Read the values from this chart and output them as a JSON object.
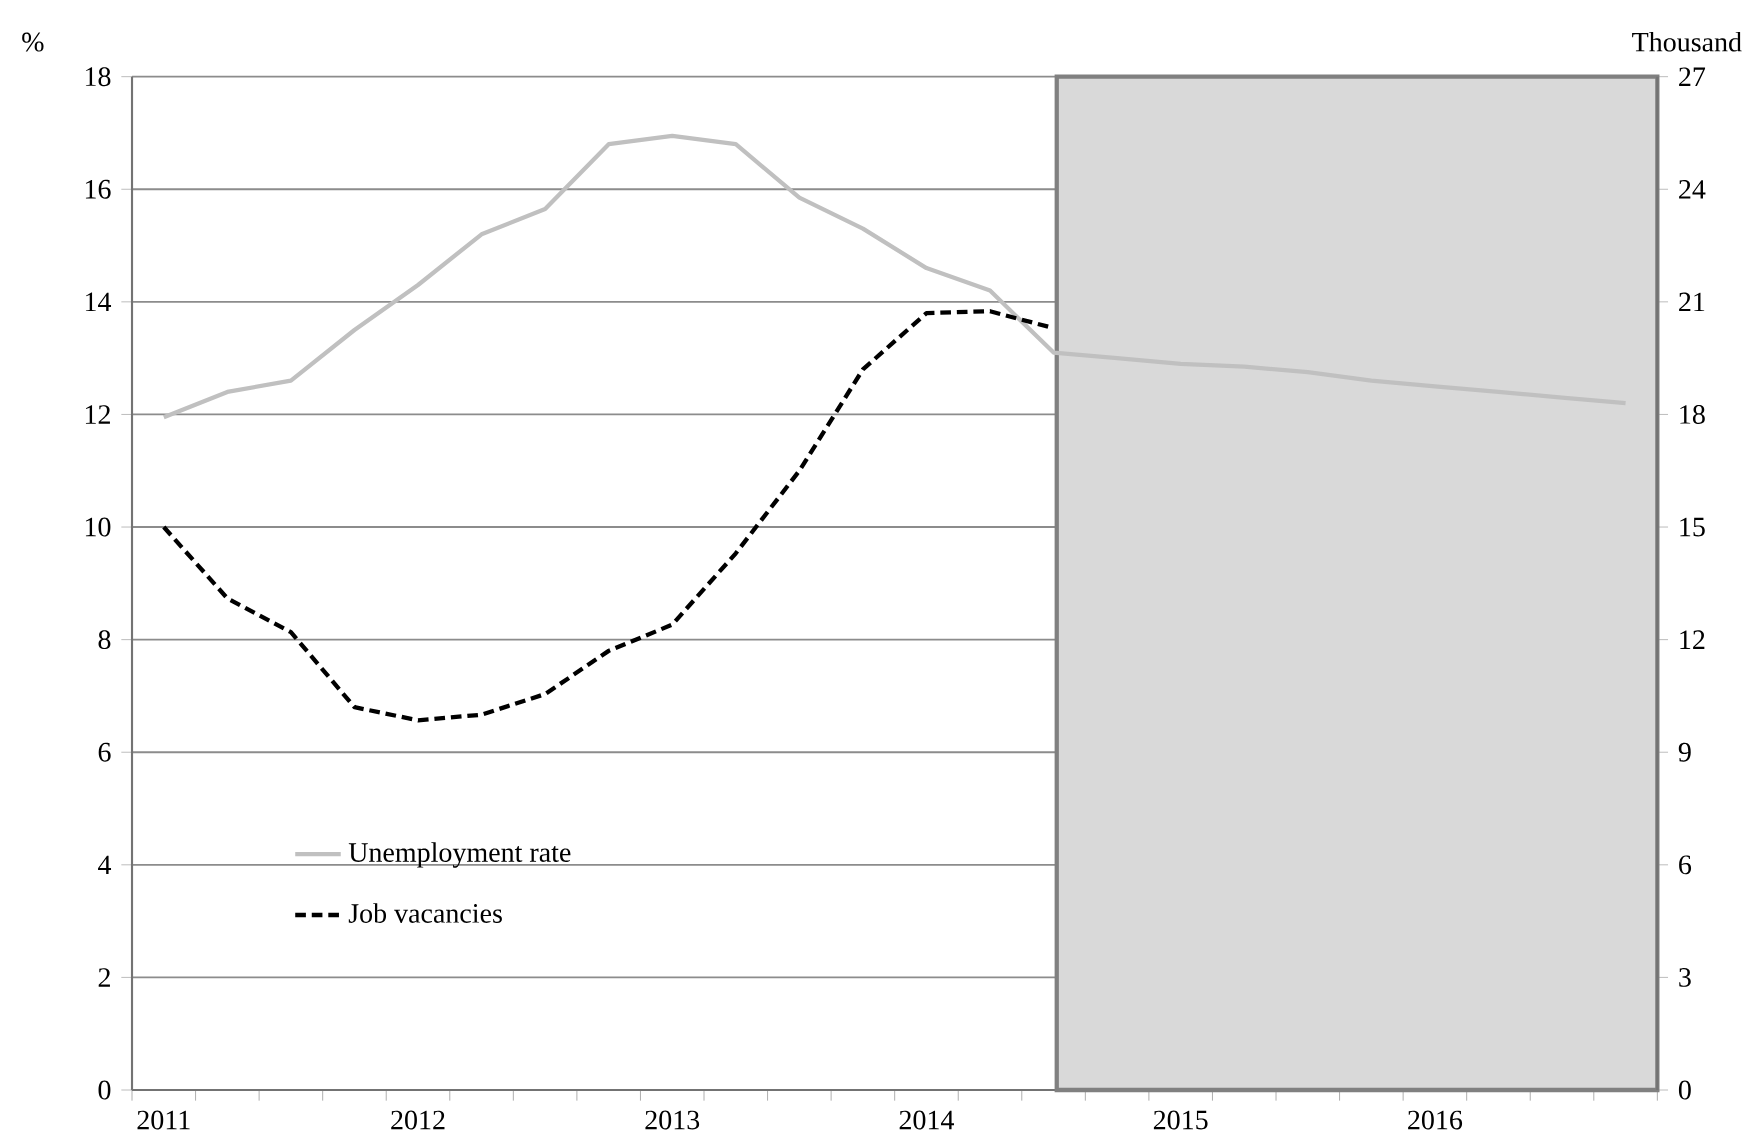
{
  "chart_data": {
    "type": "line",
    "ylabel": "%",
    "y2label": "Thousand",
    "categories": [
      "2011",
      null,
      null,
      null,
      "2012",
      null,
      null,
      null,
      "2013",
      null,
      null,
      null,
      "2014",
      null,
      null,
      null,
      "2015",
      null,
      null,
      null,
      "2016",
      null,
      null,
      null
    ],
    "series": [
      {
        "name": "Unemployment rate",
        "color": "#c0c0c0",
        "line_style": "solid",
        "values": [
          11.95,
          12.4,
          12.6,
          13.5,
          14.3,
          15.2,
          15.65,
          16.8,
          16.95,
          16.8,
          15.85,
          15.3,
          14.6,
          14.2,
          13.1,
          13.0,
          12.9,
          12.85,
          12.75,
          12.6,
          12.5,
          12.4,
          12.3,
          12.2
        ]
      },
      {
        "name": "Job vacancies",
        "color": "#000000",
        "line_style": "dashed",
        "axis": "y2",
        "values": [
          15.0,
          13.1,
          12.2,
          10.2,
          9.85,
          10.0,
          10.55,
          11.7,
          12.4,
          14.3,
          16.5,
          19.2,
          20.7,
          20.75,
          20.3,
          null,
          null,
          null,
          null,
          null,
          null,
          null,
          null,
          null
        ]
      }
    ],
    "ylim": [
      0,
      18
    ],
    "yticks": [
      0,
      2,
      4,
      6,
      8,
      10,
      12,
      14,
      16,
      18
    ],
    "y2lim": [
      0,
      27
    ],
    "y2ticks": [
      0,
      3,
      6,
      9,
      12,
      15,
      18,
      21,
      24,
      27
    ],
    "grid": "y",
    "legend": "left"
  }
}
